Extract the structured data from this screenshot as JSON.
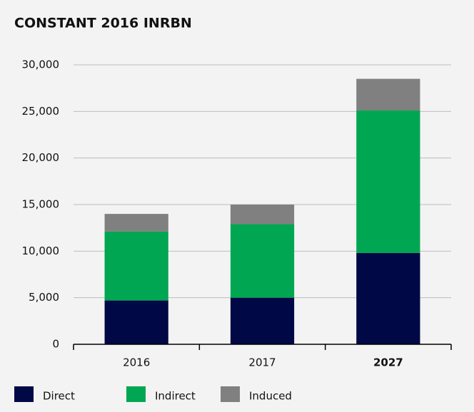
{
  "chart_data": {
    "type": "stacked_bar",
    "title": "CONSTANT 2016 INRBN",
    "categories": [
      "2016",
      "2017",
      "2027"
    ],
    "emphasized_category": 2,
    "series": [
      {
        "name": "Direct",
        "color": "#000845",
        "values": [
          4700,
          5000,
          9800
        ]
      },
      {
        "name": "Indirect",
        "color": "#00a651",
        "values": [
          7400,
          7900,
          15300
        ]
      },
      {
        "name": "Induced",
        "color": "#808080",
        "values": [
          1900,
          2100,
          3400
        ]
      }
    ],
    "ylim": [
      0,
      30000
    ],
    "yticks": [
      0,
      {
        "value": 5000,
        "label": "5,000"
      },
      {
        "value": 10000,
        "label": "10,000"
      },
      {
        "value": 15000,
        "label": "15,000"
      },
      {
        "value": 20000,
        "label": "20,000"
      },
      {
        "value": 25000,
        "label": "25,000"
      },
      {
        "value": 30000,
        "label": "30,000"
      }
    ],
    "grid": true,
    "legend": "bottom"
  }
}
